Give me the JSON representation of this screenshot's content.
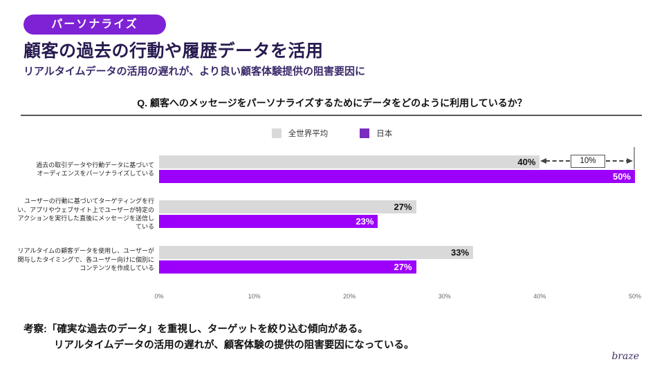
{
  "slide": {
    "badge_label": "パーソナライズ",
    "title": "顧客の過去の行動や履歴データを活用",
    "subtitle": "リアルタイムデータの活用の遅れが、より良い顧客体験提供の阻害要因に",
    "question": "Q. 顧客へのメッセージをパーソナライズするためにデータをどのように利用しているか？",
    "insight": {
      "line1": "考察:「確実な過去のデータ」を重視し、ターゲットを絞り込む傾向がある。",
      "line2": "リアルタイムデータの活用の遅れが、顧客体験の提供の阻害要因になっている。"
    },
    "logo_text": "braze"
  },
  "colors": {
    "badge_purple": "#7e22d5",
    "title_dark_indigo": "#281a50",
    "subtitle_indigo": "#3b2a6b",
    "bar_gray": "#d9d9d9",
    "bar_purple": "#9c00fa",
    "legend_purple": "#7a2cbe"
  },
  "legend": {
    "items": [
      {
        "label": "全世界平均",
        "color": "#d9d9d9"
      },
      {
        "label": "日本",
        "color": "#7a2cbe"
      }
    ]
  },
  "chart_data": {
    "type": "bar",
    "orientation": "horizontal",
    "title": "Q. 顧客へのメッセージをパーソナライズするためにデータをどのように利用しているか？",
    "categories": [
      "過去の取引データや行動データに基づいて\nオーディエンスをパーソナライズしている",
      "ユーザーの行動に基づいてターゲティングを行\nい、アプリやウェブサイト上でユーザーが特定の\nアクションを実行した直後にメッセージを送信し\nている",
      "リアルタイムの顧客データを使用し、ユーザーが\n関与したタイミングで、各ユーザー向けに個別に\nコンテンツを作成している"
    ],
    "series": [
      {
        "id": "global",
        "name": "全世界平均",
        "color": "#d9d9d9",
        "value_color": "#111111",
        "values": [
          40,
          27,
          33
        ]
      },
      {
        "id": "japan",
        "name": "日本",
        "color": "#9c00fa",
        "value_color": "#ffffff",
        "values": [
          50,
          23,
          27
        ]
      }
    ],
    "value_suffix": "%",
    "xlim": [
      0,
      50
    ],
    "x_ticks": [
      "0%",
      "10%",
      "20%",
      "30%",
      "40%",
      "50%"
    ],
    "legend_position": "top-center",
    "grid": false,
    "annotation": {
      "label": "10%",
      "from_value": 40,
      "to_value": 50,
      "category_index": 0
    }
  }
}
